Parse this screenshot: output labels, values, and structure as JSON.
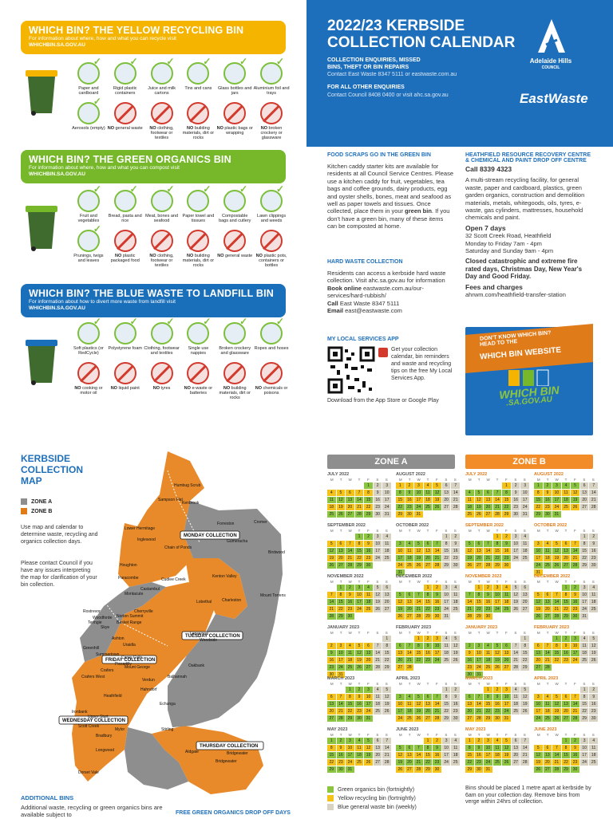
{
  "yellow_bin": {
    "title": "WHICH BIN? THE YELLOW RECYCLING BIN",
    "subtitle": "For information about where, how and what you can recycle visit",
    "url": "WHICHBIN.SA.GOV.AU",
    "yes": [
      "Paper and cardboard",
      "Rigid plastic containers",
      "Juice and milk cartons",
      "Tins and cans",
      "Glass bottles and jars",
      "Aluminium foil and trays"
    ],
    "no": [
      [
        "",
        "Aerosols (empty)"
      ],
      [
        "NO",
        "general waste"
      ],
      [
        "NO",
        "clothing, footwear or textiles"
      ],
      [
        "NO",
        "building materials, dirt or rocks"
      ],
      [
        "NO",
        "plastic bags or wrapping"
      ],
      [
        "NO",
        "broken crockery or glassware"
      ]
    ]
  },
  "green_bin": {
    "title": "WHICH BIN? THE GREEN ORGANICS BIN",
    "subtitle": "For information about where, how and what you can compost visit",
    "url": "WHICHBIN.SA.GOV.AU",
    "yes": [
      "Fruit and vegetables",
      "Bread, pasta and rice",
      "Meat, bones and seafood",
      "Paper towel and tissues",
      "Compostable bags and cutlery",
      "Lawn clippings and weeds"
    ],
    "no": [
      [
        "",
        "Prunings, twigs and leaves"
      ],
      [
        "NO",
        "plastic packaged food"
      ],
      [
        "NO",
        "clothing, footwear or textiles"
      ],
      [
        "NO",
        "building materials, dirt or rocks"
      ],
      [
        "NO",
        "general waste"
      ],
      [
        "NO",
        "plastic pots, containers or bottles"
      ]
    ]
  },
  "blue_bin": {
    "title": "WHICH BIN? THE BLUE WASTE TO LANDFILL BIN",
    "subtitle": "For information about how to divert more waste from landfill visit",
    "url": "WHICHBIN.SA.GOV.AU",
    "yes": [
      "Soft plastics (or RedCycle)",
      "Polystyrene foam",
      "Clothing, footwear and textiles",
      "Single use nappies",
      "Broken crockery and glassware",
      "Ropes and hoses"
    ],
    "no": [
      [
        "NO",
        "cooking or motor oil"
      ],
      [
        "NO",
        "liquid paint"
      ],
      [
        "NO",
        "tyres"
      ],
      [
        "NO",
        "e-waste or batteries"
      ],
      [
        "NO",
        "building materials, dirt or rocks"
      ],
      [
        "NO",
        "chemicals or poisons"
      ]
    ]
  },
  "header": {
    "title_1": "2022/23 KERBSIDE",
    "title_2": "COLLECTION CALENDAR",
    "enq_h1": "COLLECTION ENQUIRIES, MISSED",
    "enq_h2": "BINS, THEFT OR BIN REPAIRS",
    "enq_p": "Contact East Waste 8347 5111 or eastwaste.com.au",
    "other_h": "FOR ALL OTHER ENQUIRIES",
    "other_p": "Contact Council 8408 0400 or visit ahc.sa.gov.au",
    "logo_council_1": "Adelaide Hills",
    "logo_council_2": "COUNCIL",
    "logo_eastwaste": "EastWaste"
  },
  "food_scraps": {
    "title": "FOOD SCRAPS GO IN THE GREEN BIN",
    "body": "Kitchen caddy starter kits are available for residents at all Council Service Centres. Please use a kitchen caddy for fruit, vegetables, tea bags and coffee grounds, dairy products, egg and oyster shells, bones, meat and seafood as well as paper towels and tissues. Once collected, place them in your",
    "bold": "green bin",
    "body2": ". If you don't have a green bin, many of these items can be composted at home."
  },
  "hard_waste": {
    "title": "HARD WASTE COLLECTION",
    "body": "Residents can access a kerbside hard waste collection. Visit ahc.sa.gov.au for information",
    "book_label": "Book online",
    "book_value": "eastwaste.com.au/our-services/hard-rubbish/",
    "call_label": "Call",
    "call_value": "East Waste 8347 5111",
    "email_label": "Email",
    "email_value": "east@eastwaste.com"
  },
  "app": {
    "title": "MY LOCAL SERVICES APP",
    "body": "Get your collection calendar, bin reminders and waste and recycling tips on the free My Local Services App.",
    "download": "Download from the App Store or Google Play"
  },
  "heathfield": {
    "title_1": "HEATHFIELD RESOURCE RECOVERY CENTRE",
    "title_2": "& CHEMICAL AND PAINT DROP OFF CENTRE",
    "call": "Call 8339 4323",
    "body": "A multi-stream recycling facility, for general waste, paper and cardboard, plastics, green garden organics, construction and demolition materials, metals, whitegoods, oils, tyres, e-waste, gas cylinders, mattresses, household chemicals and paint.",
    "open_h": "Open 7 days",
    "addr": "32 Scott Creek Road, Heathfield",
    "hours1": "Monday to Friday 7am - 4pm",
    "hours2": "Saturday and Sunday 9am - 4pm",
    "closed": "Closed catastrophic and extreme fire rated days, Christmas Day, New Year's Day and Good Friday.",
    "fees_h": "Fees and charges",
    "fees_url": "ahrwm.com/heathfield-transfer-station"
  },
  "whichbin_box": {
    "line1": "DON'T KNOW WHICH BIN?",
    "line2": "HEAD TO THE",
    "line3": "WHICH BIN WEBSITE",
    "logo1": "WHICH BIN",
    "logo2": ".SA.GOV.AU"
  },
  "map": {
    "title_1": "KERBSIDE",
    "title_2": "COLLECTION",
    "title_3": "MAP",
    "zone_a": "ZONE A",
    "zone_b": "ZONE B",
    "p1": "Use map and calendar to determine waste, recycling and organics collection days.",
    "p2": "Please contact Council if you have any issues interpreting the map for clarification of your bin collection.",
    "monday": "MONDAY COLLECTION",
    "tuesday": "TUESDAY COLLECTION",
    "wednesday": "WEDNESDAY COLLECTION",
    "thursday": "THURSDAY COLLECTION",
    "friday": "FRIDAY COLLECTION",
    "places": [
      "Humbug Scrub",
      "Kenbrook",
      "Sampson Flat",
      "Forreston",
      "Cromer",
      "Lower Hermitage",
      "Inglewood",
      "Chain of Ponds",
      "Gumeracha",
      "Birdwood",
      "Houghton",
      "Paracombe",
      "Cudlee Creek",
      "Kenton Valley",
      "Castambul",
      "Montacute",
      "Mount Torrens",
      "Lobethal",
      "Charleston",
      "Basket Range",
      "Cherryville",
      "Norton Summit",
      "Woodforde",
      "Rostrevor",
      "Teringie",
      "Skye",
      "Ashton",
      "Uraidla",
      "Greenhill",
      "Summertown",
      "Carey Gully",
      "Lenswood",
      "Woodside",
      "Oakbank",
      "Balhannah",
      "Verdun",
      "Hahndorf",
      "Mount George",
      "Piccadilly",
      "Crafers",
      "Stirling",
      "Aldgate",
      "Bridgewater",
      "Heathfield",
      "Mylor",
      "Echunga",
      "Scott Creek",
      "Bradbury",
      "Longwood",
      "Upper Sturt",
      "Ironbank",
      "Dorset Vale",
      "Crafers West",
      "Bridgewater"
    ]
  },
  "additional": {
    "title": "ADDITIONAL BINS",
    "body": "Additional waste, recycling or green organics bins are available subject to",
    "free_green": "FREE GREEN ORGANICS  DROP OFF DAYS"
  },
  "calendar": {
    "zone_a": "ZONE A",
    "zone_b": "ZONE B",
    "dow": [
      "M",
      "T",
      "W",
      "T",
      "F",
      "S",
      "S"
    ],
    "colors": {
      "green": "#8bc540",
      "yellow": "#f5c21a",
      "blue": "#d8d2c2",
      "orange": "#f28c28",
      "grey": "#9a9a9a"
    },
    "months_a": [
      "JULY 2022",
      "AUGUST 2022",
      "SEPTEMBER 2022",
      "OCTOBER 2022",
      "NOVEMBER 2022",
      "DECEMBER 2022",
      "JANUARY 2023",
      "FEBRUARY 2023",
      "MARCH 2023",
      "APRIL 2023",
      "MAY 2023",
      "JUNE 2023"
    ],
    "months_b": [
      "JULY 2022",
      "AUGUST 2022",
      "SEPTEMBER 2022",
      "OCTOBER 2022",
      "NOVEMBER 2022",
      "DECEMBER 2022",
      "JANUARY 2023",
      "FEBRUARY 2023",
      "MARCH 2023",
      "APRIL 2023",
      "MAY 2023",
      "JUNE 2023"
    ],
    "offsets": [
      4,
      0,
      3,
      5,
      1,
      3,
      6,
      2,
      2,
      5,
      0,
      3
    ],
    "lengths": [
      31,
      31,
      30,
      31,
      30,
      31,
      31,
      28,
      31,
      30,
      31,
      30
    ]
  },
  "legend": {
    "green": "Green organics bin (fortnightly)",
    "yellow": "Yellow recycling bin (fortnightly)",
    "blue": "Blue general waste bin (weekly)",
    "note": "Bins should be placed 1 metre apart at kerbside by 6am on your collection day. Remove bins from verge within 24hrs of collection."
  }
}
